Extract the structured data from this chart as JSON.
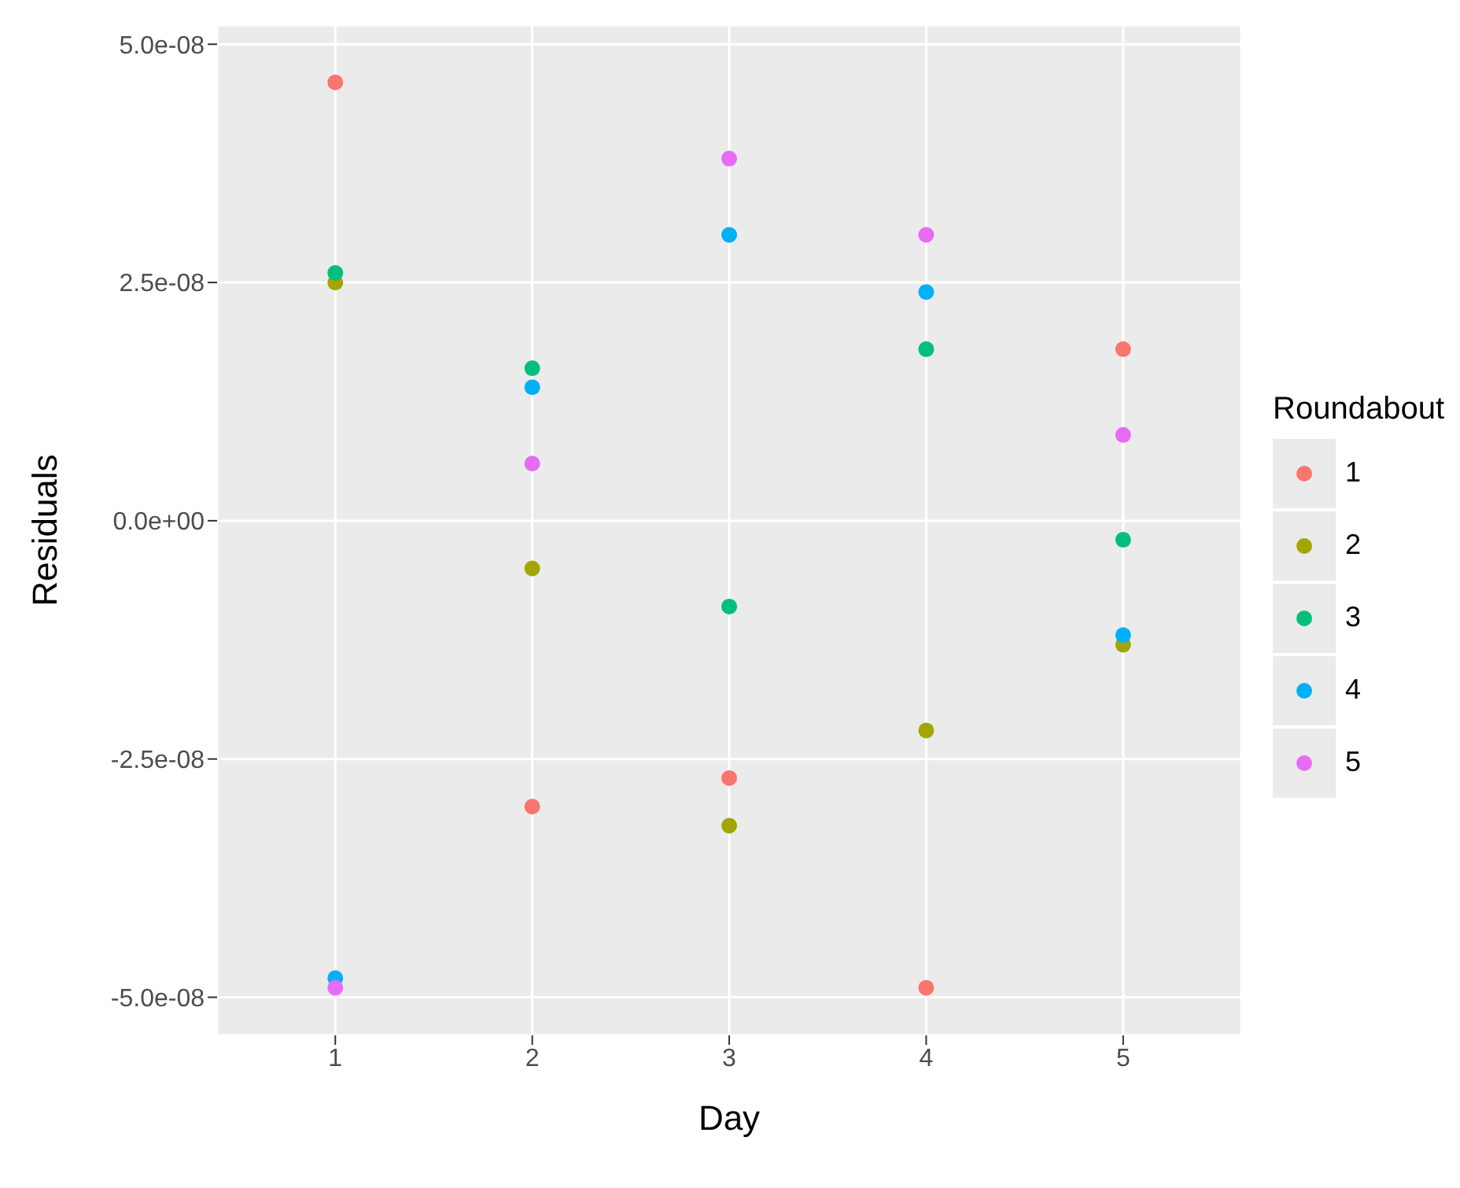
{
  "chart_data": {
    "type": "scatter",
    "xlabel": "Day",
    "ylabel": "Residuals",
    "legend_title": "Roundabout",
    "x": [
      1,
      2,
      3,
      4,
      5
    ],
    "xlim": [
      0.4,
      5.6
    ],
    "xticks": [
      1,
      2,
      3,
      4,
      5
    ],
    "ylim": [
      -5.4e-08,
      5.2e-08
    ],
    "yticks": [
      {
        "value": -5e-08,
        "label": "-5.0e-08"
      },
      {
        "value": -2.5e-08,
        "label": "-2.5e-08"
      },
      {
        "value": 0,
        "label": "0.0e+00"
      },
      {
        "value": 2.5e-08,
        "label": "2.5e-08"
      },
      {
        "value": 5e-08,
        "label": "5.0e-08"
      }
    ],
    "grid": true,
    "legend": "right",
    "marker": "circle",
    "series": [
      {
        "name": "1",
        "color": "#f8766d",
        "values": [
          4.6e-08,
          -3e-08,
          -2.7e-08,
          -4.9e-08,
          1.8e-08
        ]
      },
      {
        "name": "2",
        "color": "#a3a500",
        "values": [
          2.5e-08,
          -5e-09,
          -3.2e-08,
          -2.2e-08,
          -1.3e-08
        ]
      },
      {
        "name": "3",
        "color": "#00bf7d",
        "values": [
          2.6e-08,
          1.6e-08,
          -9e-09,
          1.8e-08,
          -2e-09
        ]
      },
      {
        "name": "4",
        "color": "#00b0f6",
        "values": [
          -4.8e-08,
          1.4e-08,
          3e-08,
          2.4e-08,
          -1.2e-08
        ]
      },
      {
        "name": "5",
        "color": "#e76bf3",
        "values": [
          -4.9e-08,
          6e-09,
          3.8e-08,
          3e-08,
          9e-09
        ]
      }
    ]
  }
}
